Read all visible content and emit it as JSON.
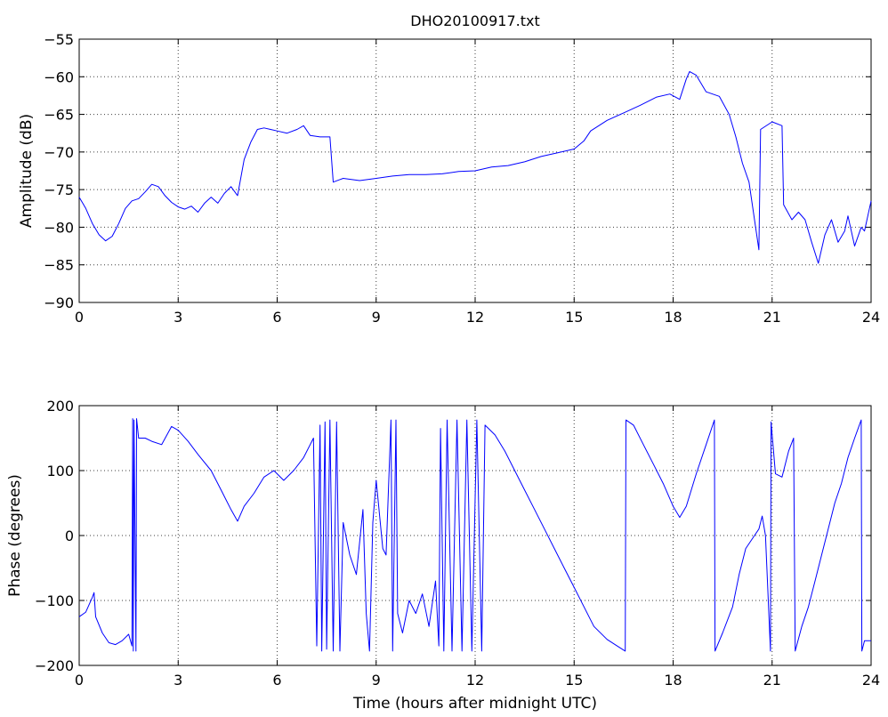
{
  "figure": {
    "colors": {
      "series": "#0000ff",
      "axes": "#000000",
      "background": "#ffffff"
    }
  },
  "chart_data": [
    {
      "type": "line",
      "title": "DHO20100917.txt",
      "xlabel": "",
      "ylabel": "Amplitude (dB)",
      "xlim": [
        0,
        24
      ],
      "ylim": [
        -90,
        -55
      ],
      "grid": true,
      "x_ticks": [
        "0",
        "3",
        "6",
        "9",
        "12",
        "15",
        "18",
        "21",
        "24"
      ],
      "y_ticks": [
        "−90",
        "−85",
        "−80",
        "−75",
        "−70",
        "−65",
        "−60",
        "−55"
      ],
      "series": [
        {
          "values": [
            [
              0.0,
              -76.0
            ],
            [
              0.2,
              -77.5
            ],
            [
              0.4,
              -79.5
            ],
            [
              0.6,
              -81.0
            ],
            [
              0.8,
              -81.8
            ],
            [
              1.0,
              -81.2
            ],
            [
              1.2,
              -79.5
            ],
            [
              1.4,
              -77.5
            ],
            [
              1.6,
              -76.5
            ],
            [
              1.8,
              -76.2
            ],
            [
              2.0,
              -75.3
            ],
            [
              2.2,
              -74.3
            ],
            [
              2.4,
              -74.6
            ],
            [
              2.6,
              -75.8
            ],
            [
              2.8,
              -76.7
            ],
            [
              3.0,
              -77.3
            ],
            [
              3.2,
              -77.6
            ],
            [
              3.4,
              -77.2
            ],
            [
              3.6,
              -78.0
            ],
            [
              3.8,
              -76.8
            ],
            [
              4.0,
              -76.0
            ],
            [
              4.2,
              -76.8
            ],
            [
              4.4,
              -75.5
            ],
            [
              4.6,
              -74.6
            ],
            [
              4.8,
              -75.8
            ],
            [
              5.0,
              -71.0
            ],
            [
              5.2,
              -68.7
            ],
            [
              5.4,
              -67.0
            ],
            [
              5.6,
              -66.8
            ],
            [
              5.8,
              -67.0
            ],
            [
              6.0,
              -67.2
            ],
            [
              6.3,
              -67.5
            ],
            [
              6.6,
              -67.0
            ],
            [
              6.8,
              -66.5
            ],
            [
              7.0,
              -67.8
            ],
            [
              7.3,
              -68.0
            ],
            [
              7.6,
              -68.0
            ],
            [
              7.7,
              -74.0
            ],
            [
              8.0,
              -73.5
            ],
            [
              8.5,
              -73.8
            ],
            [
              9.0,
              -73.5
            ],
            [
              9.5,
              -73.2
            ],
            [
              10.0,
              -73.0
            ],
            [
              10.5,
              -73.0
            ],
            [
              11.0,
              -72.9
            ],
            [
              11.5,
              -72.6
            ],
            [
              12.0,
              -72.5
            ],
            [
              12.5,
              -72.0
            ],
            [
              13.0,
              -71.8
            ],
            [
              13.5,
              -71.3
            ],
            [
              14.0,
              -70.6
            ],
            [
              14.5,
              -70.1
            ],
            [
              15.0,
              -69.6
            ],
            [
              15.3,
              -68.5
            ],
            [
              15.5,
              -67.2
            ],
            [
              16.0,
              -65.8
            ],
            [
              16.5,
              -64.8
            ],
            [
              17.0,
              -63.8
            ],
            [
              17.5,
              -62.7
            ],
            [
              17.9,
              -62.3
            ],
            [
              18.2,
              -63.0
            ],
            [
              18.4,
              -60.3
            ],
            [
              18.5,
              -59.3
            ],
            [
              18.7,
              -59.8
            ],
            [
              19.0,
              -62.0
            ],
            [
              19.4,
              -62.6
            ],
            [
              19.7,
              -65.0
            ],
            [
              19.9,
              -68.0
            ],
            [
              20.1,
              -71.5
            ],
            [
              20.3,
              -74.0
            ],
            [
              20.5,
              -80.0
            ],
            [
              20.6,
              -83.0
            ],
            [
              20.65,
              -67.0
            ],
            [
              21.0,
              -66.0
            ],
            [
              21.3,
              -66.5
            ],
            [
              21.35,
              -77.0
            ],
            [
              21.6,
              -79.0
            ],
            [
              21.8,
              -78.0
            ],
            [
              22.0,
              -79.0
            ],
            [
              22.2,
              -82.0
            ],
            [
              22.4,
              -84.8
            ],
            [
              22.6,
              -81.0
            ],
            [
              22.8,
              -79.0
            ],
            [
              23.0,
              -82.0
            ],
            [
              23.2,
              -80.5
            ],
            [
              23.3,
              -78.5
            ],
            [
              23.5,
              -82.5
            ],
            [
              23.7,
              -80.0
            ],
            [
              23.8,
              -80.5
            ],
            [
              24.0,
              -76.5
            ]
          ]
        }
      ]
    },
    {
      "type": "line",
      "title": "",
      "xlabel": "Time (hours after midnight UTC)",
      "ylabel": "Phase (degrees)",
      "xlim": [
        0,
        24
      ],
      "ylim": [
        -200,
        200
      ],
      "grid": true,
      "x_ticks": [
        "0",
        "3",
        "6",
        "9",
        "12",
        "15",
        "18",
        "21",
        "24"
      ],
      "y_ticks": [
        "−200",
        "−100",
        "0",
        "100",
        "200"
      ],
      "series": [
        {
          "values": [
            [
              0.0,
              -125
            ],
            [
              0.2,
              -118
            ],
            [
              0.4,
              -95
            ],
            [
              0.45,
              -88
            ],
            [
              0.5,
              -125
            ],
            [
              0.7,
              -150
            ],
            [
              0.9,
              -165
            ],
            [
              1.1,
              -168
            ],
            [
              1.3,
              -162
            ],
            [
              1.5,
              -152
            ],
            [
              1.6,
              -170
            ],
            [
              1.62,
              180
            ],
            [
              1.64,
              -178
            ],
            [
              1.66,
              178
            ],
            [
              1.72,
              -178
            ],
            [
              1.74,
              180
            ],
            [
              1.8,
              150
            ],
            [
              2.0,
              150
            ],
            [
              2.2,
              145
            ],
            [
              2.5,
              140
            ],
            [
              2.8,
              168
            ],
            [
              3.0,
              162
            ],
            [
              3.3,
              145
            ],
            [
              3.6,
              125
            ],
            [
              4.0,
              100
            ],
            [
              4.3,
              70
            ],
            [
              4.6,
              40
            ],
            [
              4.8,
              22
            ],
            [
              5.0,
              45
            ],
            [
              5.3,
              65
            ],
            [
              5.6,
              90
            ],
            [
              5.9,
              100
            ],
            [
              6.2,
              85
            ],
            [
              6.5,
              100
            ],
            [
              6.8,
              120
            ],
            [
              7.0,
              140
            ],
            [
              7.1,
              150
            ],
            [
              7.2,
              -170
            ],
            [
              7.3,
              170
            ],
            [
              7.35,
              -178
            ],
            [
              7.45,
              175
            ],
            [
              7.5,
              -175
            ],
            [
              7.6,
              178
            ],
            [
              7.7,
              -178
            ],
            [
              7.8,
              175
            ],
            [
              7.9,
              -178
            ],
            [
              8.0,
              20
            ],
            [
              8.2,
              -30
            ],
            [
              8.4,
              -60
            ],
            [
              8.6,
              40
            ],
            [
              8.7,
              -120
            ],
            [
              8.8,
              -178
            ],
            [
              8.9,
              20
            ],
            [
              9.0,
              85
            ],
            [
              9.2,
              -20
            ],
            [
              9.3,
              -30
            ],
            [
              9.45,
              178
            ],
            [
              9.5,
              -178
            ],
            [
              9.6,
              178
            ],
            [
              9.65,
              -120
            ],
            [
              9.8,
              -150
            ],
            [
              10.0,
              -100
            ],
            [
              10.2,
              -120
            ],
            [
              10.4,
              -90
            ],
            [
              10.6,
              -140
            ],
            [
              10.8,
              -70
            ],
            [
              10.9,
              -170
            ],
            [
              10.95,
              165
            ],
            [
              11.05,
              -178
            ],
            [
              11.15,
              178
            ],
            [
              11.3,
              -178
            ],
            [
              11.45,
              178
            ],
            [
              11.6,
              -178
            ],
            [
              11.75,
              178
            ],
            [
              11.9,
              -178
            ],
            [
              12.05,
              178
            ],
            [
              12.2,
              -178
            ],
            [
              12.3,
              170
            ],
            [
              12.6,
              155
            ],
            [
              12.9,
              130
            ],
            [
              13.2,
              100
            ],
            [
              13.5,
              70
            ],
            [
              13.8,
              40
            ],
            [
              14.1,
              10
            ],
            [
              14.4,
              -20
            ],
            [
              14.7,
              -50
            ],
            [
              15.0,
              -80
            ],
            [
              15.3,
              -110
            ],
            [
              15.6,
              -140
            ],
            [
              16.0,
              -160
            ],
            [
              16.3,
              -170
            ],
            [
              16.55,
              -178
            ],
            [
              16.57,
              178
            ],
            [
              16.8,
              170
            ],
            [
              17.1,
              140
            ],
            [
              17.4,
              110
            ],
            [
              17.7,
              80
            ],
            [
              18.0,
              45
            ],
            [
              18.2,
              28
            ],
            [
              18.4,
              45
            ],
            [
              18.7,
              95
            ],
            [
              19.0,
              140
            ],
            [
              19.25,
              178
            ],
            [
              19.27,
              -178
            ],
            [
              19.5,
              -150
            ],
            [
              19.8,
              -110
            ],
            [
              20.0,
              -60
            ],
            [
              20.2,
              -20
            ],
            [
              20.4,
              -5
            ],
            [
              20.6,
              10
            ],
            [
              20.7,
              30
            ],
            [
              20.8,
              0
            ],
            [
              20.95,
              -178
            ],
            [
              20.97,
              175
            ],
            [
              21.1,
              95
            ],
            [
              21.3,
              90
            ],
            [
              21.5,
              130
            ],
            [
              21.65,
              150
            ],
            [
              21.7,
              -178
            ],
            [
              21.9,
              -140
            ],
            [
              22.1,
              -110
            ],
            [
              22.3,
              -70
            ],
            [
              22.5,
              -30
            ],
            [
              22.7,
              10
            ],
            [
              22.9,
              50
            ],
            [
              23.1,
              80
            ],
            [
              23.3,
              120
            ],
            [
              23.5,
              150
            ],
            [
              23.7,
              178
            ],
            [
              23.72,
              -178
            ],
            [
              23.8,
              -162
            ],
            [
              24.0,
              -162
            ]
          ]
        }
      ]
    }
  ]
}
